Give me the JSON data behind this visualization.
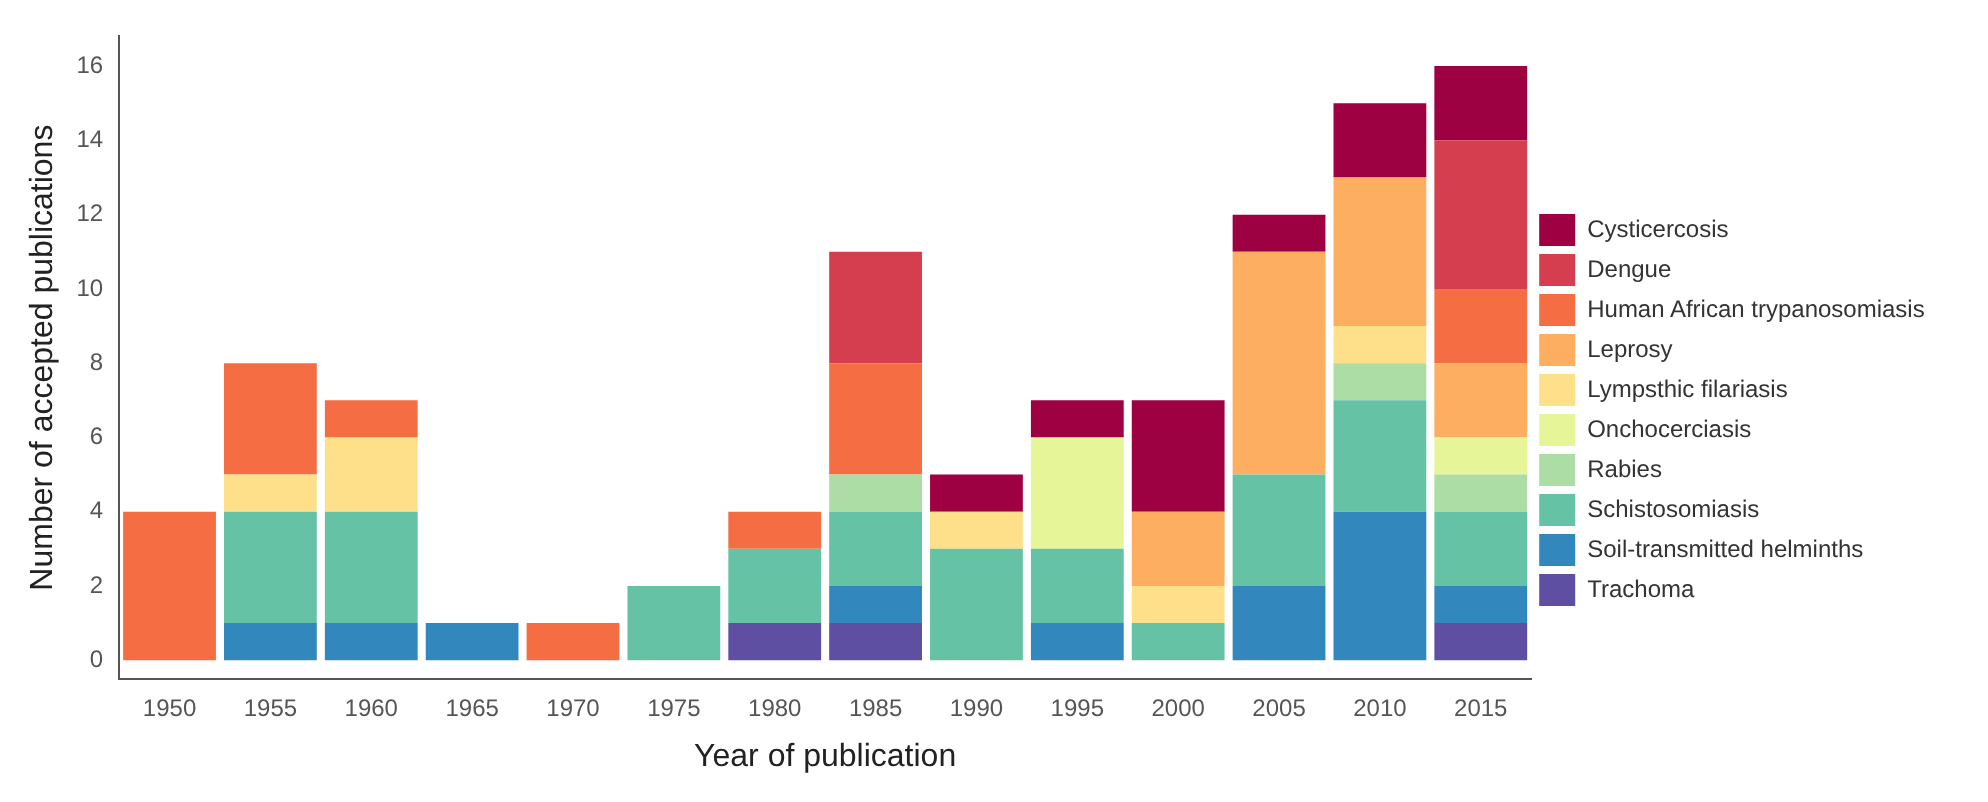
{
  "chart_data": {
    "type": "bar",
    "stacked": true,
    "xlabel": "Year of publication",
    "ylabel": "Number of accepted publications",
    "categories": [
      "1950",
      "1955",
      "1960",
      "1965",
      "1970",
      "1975",
      "1980",
      "1985",
      "1990",
      "1995",
      "2000",
      "2005",
      "2010",
      "2015"
    ],
    "ylim": [
      -0.5,
      16.8
    ],
    "yticks": [
      0,
      2,
      4,
      6,
      8,
      10,
      12,
      14,
      16
    ],
    "grid": false,
    "legend": "right",
    "series": [
      {
        "name": "Trachoma",
        "color": "#5e4fa2",
        "values": [
          0,
          0,
          0,
          0,
          0,
          0,
          1,
          1,
          0,
          0,
          0,
          0,
          0,
          1
        ]
      },
      {
        "name": "Soil-transmitted helminths",
        "color": "#3288bd",
        "values": [
          0,
          1,
          1,
          1,
          0,
          0,
          0,
          1,
          0,
          1,
          0,
          2,
          4,
          1
        ]
      },
      {
        "name": "Schistosomiasis",
        "color": "#66c2a5",
        "values": [
          0,
          3,
          3,
          0,
          0,
          2,
          2,
          2,
          3,
          2,
          1,
          3,
          3,
          2
        ]
      },
      {
        "name": "Rabies",
        "color": "#abdda4",
        "values": [
          0,
          0,
          0,
          0,
          0,
          0,
          0,
          1,
          0,
          0,
          0,
          0,
          1,
          1
        ]
      },
      {
        "name": "Onchocerciasis",
        "color": "#e6f598",
        "values": [
          0,
          0,
          0,
          0,
          0,
          0,
          0,
          0,
          0,
          3,
          0,
          0,
          0,
          1
        ]
      },
      {
        "name": "Lympsthic filariasis",
        "color": "#fee08b",
        "values": [
          0,
          1,
          2,
          0,
          0,
          0,
          0,
          0,
          1,
          0,
          1,
          0,
          1,
          0
        ]
      },
      {
        "name": "Leprosy",
        "color": "#fdae61",
        "values": [
          0,
          0,
          0,
          0,
          0,
          0,
          0,
          0,
          0,
          0,
          2,
          6,
          4,
          2
        ]
      },
      {
        "name": "Human African trypanosomiasis",
        "color": "#f46d43",
        "values": [
          4,
          3,
          1,
          0,
          1,
          0,
          1,
          3,
          0,
          0,
          0,
          0,
          0,
          2
        ]
      },
      {
        "name": "Dengue",
        "color": "#d53e4f",
        "values": [
          0,
          0,
          0,
          0,
          0,
          0,
          0,
          3,
          0,
          0,
          0,
          0,
          0,
          4
        ]
      },
      {
        "name": "Cysticercosis",
        "color": "#9e0142",
        "values": [
          0,
          0,
          0,
          0,
          0,
          0,
          0,
          0,
          1,
          1,
          3,
          1,
          2,
          2
        ]
      }
    ]
  }
}
